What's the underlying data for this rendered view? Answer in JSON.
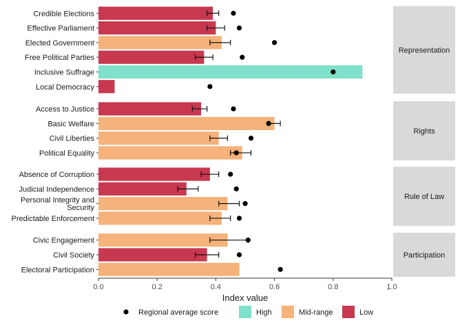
{
  "chart_data": {
    "type": "bar",
    "orientation": "horizontal",
    "xlabel": "Index value",
    "xlim": [
      0,
      1
    ],
    "x_ticks": [
      "0.0",
      "0.2",
      "0.4",
      "0.6",
      "0.8",
      "1.0"
    ],
    "colors": {
      "High": "#7fe0cb",
      "Mid-range": "#f5b27a",
      "Low": "#c8384f"
    },
    "legend": {
      "position": "bottom",
      "marker_label": "Regional average score",
      "categories": [
        "High",
        "Mid-range",
        "Low"
      ]
    },
    "panels": [
      {
        "name": "Representation",
        "rows": [
          {
            "label": "Credible Elections",
            "value": 0.39,
            "category": "Low",
            "err": [
              0.37,
              0.41
            ],
            "regional_avg": 0.46
          },
          {
            "label": "Effective Parliament",
            "value": 0.4,
            "category": "Low",
            "err": [
              0.37,
              0.43
            ],
            "regional_avg": 0.48
          },
          {
            "label": "Elected Government",
            "value": 0.42,
            "category": "Mid-range",
            "err": [
              0.38,
              0.45
            ],
            "regional_avg": 0.6
          },
          {
            "label": "Free Political Parties",
            "value": 0.36,
            "category": "Low",
            "err": [
              0.33,
              0.39
            ],
            "regional_avg": 0.49
          },
          {
            "label": "Inclusive Suffrage",
            "value": 0.9,
            "category": "High",
            "err": null,
            "regional_avg": 0.8
          },
          {
            "label": "Local Democracy",
            "value": 0.055,
            "category": "Low",
            "err": null,
            "regional_avg": 0.38
          }
        ]
      },
      {
        "name": "Rights",
        "rows": [
          {
            "label": "Access to Justice",
            "value": 0.35,
            "category": "Low",
            "err": [
              0.32,
              0.37
            ],
            "regional_avg": 0.46
          },
          {
            "label": "Basic Welfare",
            "value": 0.6,
            "category": "Mid-range",
            "err": [
              0.58,
              0.62
            ],
            "regional_avg": 0.58
          },
          {
            "label": "Civil Liberties",
            "value": 0.41,
            "category": "Mid-range",
            "err": [
              0.38,
              0.44
            ],
            "regional_avg": 0.52
          },
          {
            "label": "Political Equality",
            "value": 0.49,
            "category": "Mid-range",
            "err": [
              0.45,
              0.52
            ],
            "regional_avg": 0.47
          }
        ]
      },
      {
        "name": "Rule of Law",
        "rows": [
          {
            "label": "Absence of Corruption",
            "value": 0.38,
            "category": "Low",
            "err": [
              0.35,
              0.41
            ],
            "regional_avg": 0.45
          },
          {
            "label": "Judicial Independence",
            "value": 0.3,
            "category": "Low",
            "err": [
              0.27,
              0.34
            ],
            "regional_avg": 0.47
          },
          {
            "label": "Personal Integrity and\nSecurity",
            "value": 0.44,
            "category": "Mid-range",
            "err": [
              0.41,
              0.48
            ],
            "regional_avg": 0.5
          },
          {
            "label": "Predictable Enforcement",
            "value": 0.42,
            "category": "Mid-range",
            "err": [
              0.38,
              0.45
            ],
            "regional_avg": 0.48
          }
        ]
      },
      {
        "name": "Participation",
        "rows": [
          {
            "label": "Civic Engagement",
            "value": 0.44,
            "category": "Mid-range",
            "err": [
              0.38,
              0.51
            ],
            "regional_avg": 0.51
          },
          {
            "label": "Civil Society",
            "value": 0.37,
            "category": "Low",
            "err": [
              0.33,
              0.41
            ],
            "regional_avg": 0.48
          },
          {
            "label": "Electoral Participation",
            "value": 0.48,
            "category": "Mid-range",
            "err": null,
            "regional_avg": 0.62
          }
        ]
      }
    ]
  }
}
